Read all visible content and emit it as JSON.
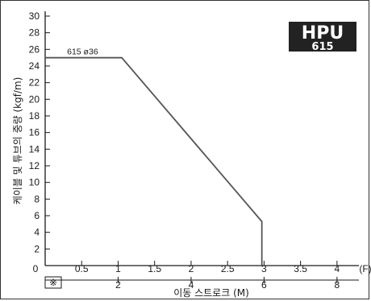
{
  "chart_data": {
    "type": "line",
    "title": "",
    "badge": {
      "line1": "HPU",
      "line2": "615"
    },
    "ylabel": "케이블 및 튜브의 중량 (kgf/m)",
    "xlabel": "이동 스트로크 (M)",
    "x_unit": "(F)",
    "origin_label": "0",
    "ylim": [
      0,
      30
    ],
    "y_ticks": [
      2,
      4,
      6,
      8,
      10,
      12,
      14,
      16,
      18,
      20,
      22,
      24,
      26,
      28,
      30
    ],
    "x_ticks_f": [
      "0.5",
      "1",
      "1.5",
      "2",
      "2.5",
      "3",
      "3.5",
      "4"
    ],
    "x_ticks_f_values": [
      0.5,
      1,
      1.5,
      2,
      2.5,
      3,
      3.5,
      4
    ],
    "xlim_f": [
      0,
      4.3
    ],
    "secondary_axis_m": {
      "ticks": [
        "2",
        "4",
        "6",
        "8"
      ],
      "values": [
        2,
        4,
        6,
        8
      ],
      "factor_f_per_m": 0.5
    },
    "note_symbol": "※",
    "series": [
      {
        "name": "615 ø36",
        "x": [
          0,
          1.05,
          2.97,
          2.97
        ],
        "y": [
          25,
          25,
          5.3,
          0
        ]
      }
    ],
    "grid": false
  }
}
